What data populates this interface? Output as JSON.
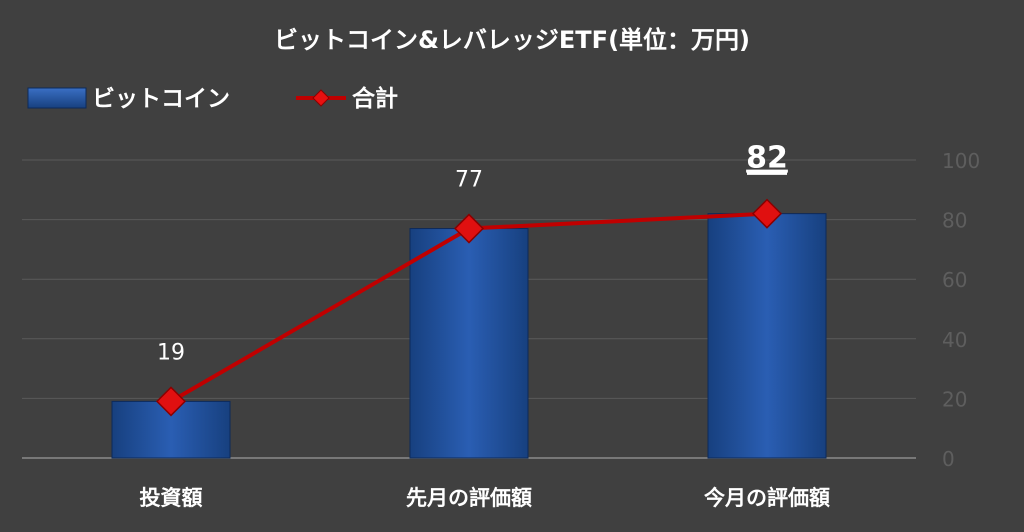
{
  "chart_data": {
    "type": "bar",
    "title": "ビットコイン&レバレッジETF(単位：万円)",
    "categories": [
      "投資額",
      "先月の評価額",
      "今月の評価額"
    ],
    "series": [
      {
        "name": "ビットコイン",
        "type": "bar",
        "values": [
          19,
          77,
          82
        ],
        "color": "#1f4e9c"
      },
      {
        "name": "合計",
        "type": "line",
        "values": [
          19,
          77,
          82
        ],
        "color": "#c00000"
      }
    ],
    "data_labels": [
      "19",
      "77",
      "82"
    ],
    "highlighted_label_index": 2,
    "ylim": [
      0,
      100
    ],
    "yticks": [
      0,
      20,
      40,
      60,
      80,
      100
    ],
    "y_axis_side": "right",
    "grid": true,
    "legend_position": "top-left",
    "xlabel": "",
    "ylabel": ""
  }
}
